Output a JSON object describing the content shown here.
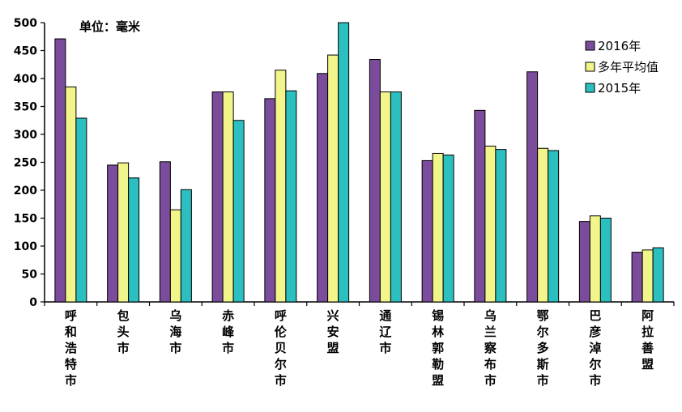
{
  "chart_data": {
    "type": "bar",
    "unit_label": "单位：毫米",
    "categories": [
      "呼和浩特市",
      "包头市",
      "乌海市",
      "赤峰市",
      "呼伦贝尔市",
      "兴安盟",
      "通辽市",
      "锡林郭勒盟",
      "乌兰察布市",
      "鄂尔多斯市",
      "巴彦淖尔市",
      "阿拉善盟"
    ],
    "series": [
      {
        "name": "2016年",
        "color": "#7B4B9C",
        "values": [
          471,
          245,
          251,
          376,
          364,
          409,
          434,
          253,
          343,
          412,
          144,
          89
        ]
      },
      {
        "name": "多年平均值",
        "color": "#F2F58A",
        "values": [
          385,
          249,
          165,
          376,
          415,
          442,
          376,
          266,
          279,
          275,
          154,
          93
        ]
      },
      {
        "name": "2015年",
        "color": "#2BBFBF",
        "values": [
          329,
          222,
          201,
          325,
          378,
          500,
          376,
          263,
          273,
          271,
          150,
          97
        ]
      }
    ],
    "ylim": [
      0,
      500
    ],
    "yticks": [
      0,
      50,
      100,
      150,
      200,
      250,
      300,
      350,
      400,
      450,
      500
    ],
    "grid": false,
    "legend_position": "top-right"
  }
}
